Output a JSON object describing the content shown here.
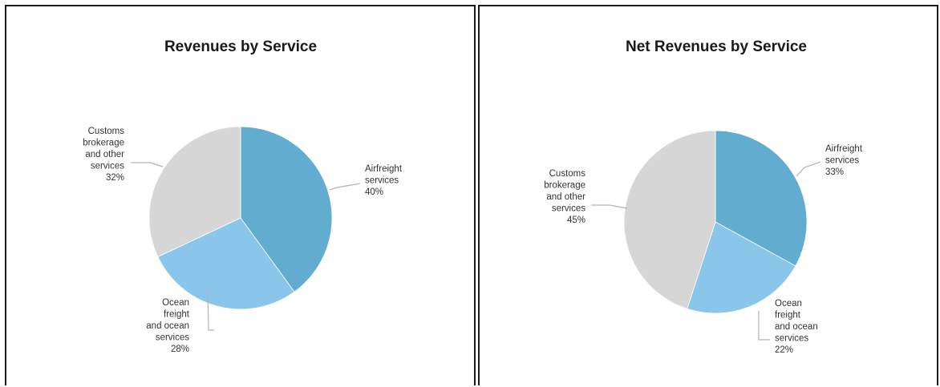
{
  "colors": {
    "airfreight": "#62acd0",
    "ocean": "#8ac6ea",
    "customs": "#d6d6d6"
  },
  "chart_data": [
    {
      "type": "pie",
      "title": "Revenues by Service",
      "slices": [
        {
          "label_lines": [
            "Airfreight",
            "services"
          ],
          "value": 40,
          "value_label": "40%",
          "color_key": "airfreight"
        },
        {
          "label_lines": [
            "Ocean",
            "freight",
            "and ocean",
            "services"
          ],
          "value": 28,
          "value_label": "28%",
          "color_key": "ocean"
        },
        {
          "label_lines": [
            "Customs",
            "brokerage",
            "and other",
            "services"
          ],
          "value": 32,
          "value_label": "32%",
          "color_key": "customs"
        }
      ]
    },
    {
      "type": "pie",
      "title": "Net Revenues by Service",
      "slices": [
        {
          "label_lines": [
            "Airfreight",
            "services"
          ],
          "value": 33,
          "value_label": "33%",
          "color_key": "airfreight"
        },
        {
          "label_lines": [
            "Ocean",
            "freight",
            "and ocean",
            "services"
          ],
          "value": 22,
          "value_label": "22%",
          "color_key": "ocean"
        },
        {
          "label_lines": [
            "Customs",
            "brokerage",
            "and other",
            "services"
          ],
          "value": 45,
          "value_label": "45%",
          "color_key": "customs"
        }
      ]
    }
  ]
}
